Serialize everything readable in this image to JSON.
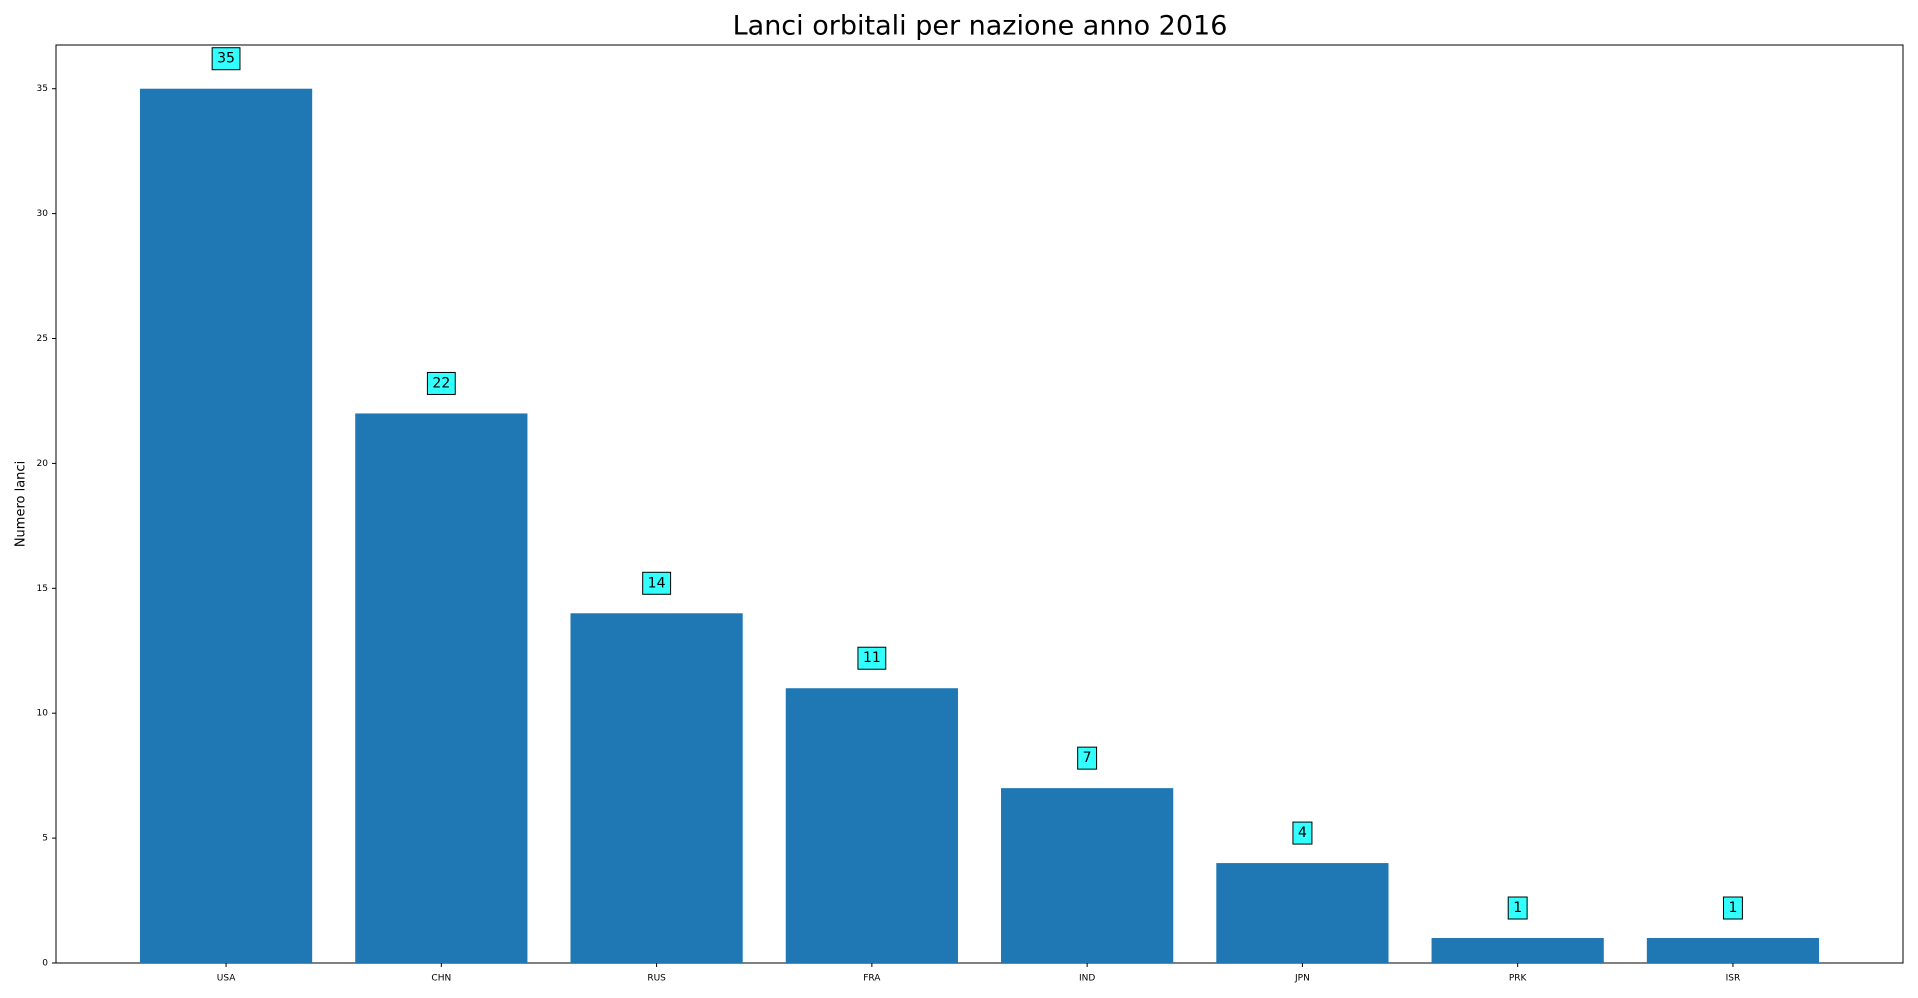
{
  "chart_data": {
    "type": "bar",
    "title": "Lanci orbitali per nazione anno 2016",
    "y_label": "Numero lanci",
    "categories": [
      "USA",
      "CHN",
      "RUS",
      "FRA",
      "IND",
      "JPN",
      "PRK",
      "ISR"
    ],
    "values": [
      35,
      22,
      14,
      11,
      7,
      4,
      1,
      1
    ],
    "color": "#1f77b4",
    "label_box_color": "#33ffff",
    "ylim": [
      0,
      36.75
    ],
    "yticks": [
      0,
      5,
      10,
      15,
      20,
      25,
      30,
      35
    ],
    "grid": false
  }
}
